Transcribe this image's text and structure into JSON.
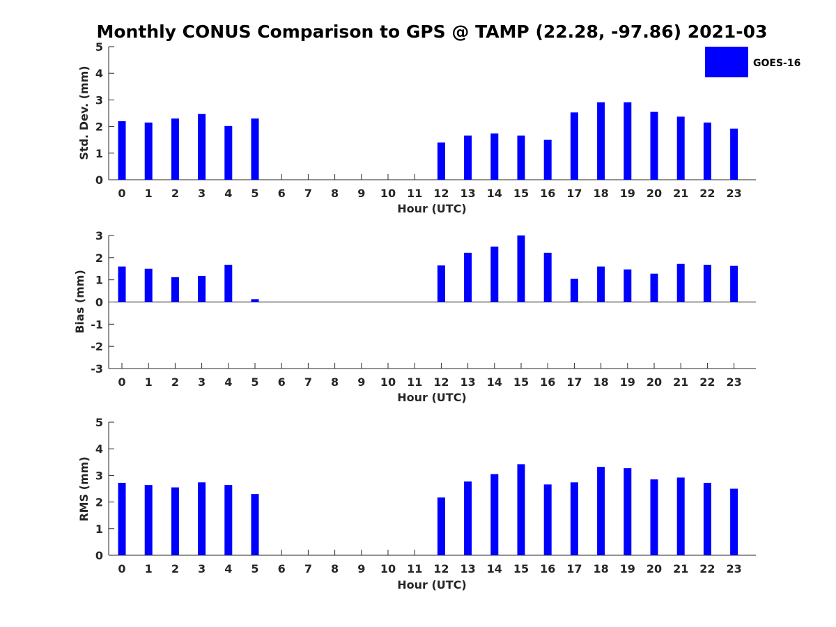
{
  "chart_data": {
    "title": "Monthly CONUS Comparison to GPS @ TAMP (22.28, -97.86) 2021-03",
    "legend": {
      "label": "GOES-16",
      "color": "#0000ff",
      "position": "top-right"
    },
    "bar_color": "#0000ff",
    "panels": [
      {
        "type": "bar",
        "ylabel": "Std. Dev. (mm)",
        "xlabel": "Hour (UTC)",
        "ylim": [
          0,
          5
        ],
        "yticks": [
          "0",
          "1",
          "2",
          "3",
          "4",
          "5"
        ],
        "categories": [
          "0",
          "1",
          "2",
          "3",
          "4",
          "5",
          "6",
          "7",
          "8",
          "9",
          "10",
          "11",
          "12",
          "13",
          "14",
          "15",
          "16",
          "17",
          "18",
          "19",
          "20",
          "21",
          "22",
          "23"
        ],
        "series": [
          {
            "name": "GOES-16",
            "values": [
              2.2,
              2.15,
              2.3,
              2.47,
              2.02,
              2.3,
              null,
              null,
              null,
              null,
              null,
              null,
              1.4,
              1.66,
              1.74,
              1.66,
              1.5,
              2.53,
              2.91,
              2.91,
              2.55,
              2.37,
              2.15,
              1.92
            ]
          }
        ]
      },
      {
        "type": "bar",
        "ylabel": "Bias (mm)",
        "xlabel": "Hour (UTC)",
        "ylim": [
          -3,
          3
        ],
        "yticks": [
          "-3",
          "-2",
          "-1",
          "0",
          "1",
          "2",
          "3"
        ],
        "categories": [
          "0",
          "1",
          "2",
          "3",
          "4",
          "5",
          "6",
          "7",
          "8",
          "9",
          "10",
          "11",
          "12",
          "13",
          "14",
          "15",
          "16",
          "17",
          "18",
          "19",
          "20",
          "21",
          "22",
          "23"
        ],
        "series": [
          {
            "name": "GOES-16",
            "values": [
              1.6,
              1.5,
              1.12,
              1.18,
              1.68,
              0.13,
              null,
              null,
              null,
              null,
              null,
              null,
              1.65,
              2.22,
              2.5,
              3.0,
              2.22,
              1.05,
              1.6,
              1.47,
              1.28,
              1.72,
              1.68,
              1.63
            ]
          }
        ]
      },
      {
        "type": "bar",
        "ylabel": "RMS (mm)",
        "xlabel": "Hour (UTC)",
        "ylim": [
          0,
          5
        ],
        "yticks": [
          "0",
          "1",
          "2",
          "3",
          "4",
          "5"
        ],
        "categories": [
          "0",
          "1",
          "2",
          "3",
          "4",
          "5",
          "6",
          "7",
          "8",
          "9",
          "10",
          "11",
          "12",
          "13",
          "14",
          "15",
          "16",
          "17",
          "18",
          "19",
          "20",
          "21",
          "22",
          "23"
        ],
        "series": [
          {
            "name": "GOES-16",
            "values": [
              2.72,
              2.64,
              2.55,
              2.74,
              2.64,
              2.3,
              null,
              null,
              null,
              null,
              null,
              null,
              2.17,
              2.77,
              3.05,
              3.42,
              2.66,
              2.74,
              3.32,
              3.27,
              2.85,
              2.92,
              2.72,
              2.5
            ]
          }
        ]
      }
    ]
  }
}
